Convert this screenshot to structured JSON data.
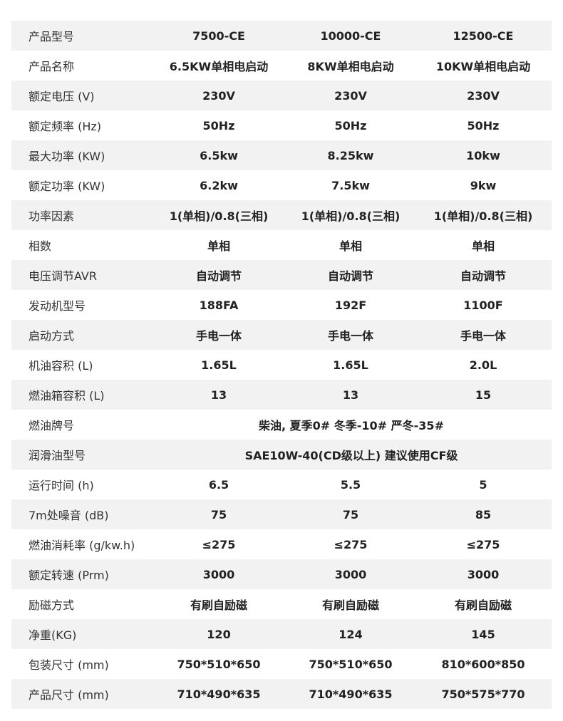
{
  "rows": [
    {
      "label": "产品型号",
      "values": [
        "7500-CE",
        "10000-CE",
        "12500-CE"
      ]
    },
    {
      "label": "产品名称",
      "values": [
        "6.5KW单相电启动",
        "8KW单相电启动",
        "10KW单相电启动"
      ]
    },
    {
      "label": "额定电压 (V)",
      "values": [
        "230V",
        "230V",
        "230V"
      ]
    },
    {
      "label": "额定频率 (Hz)",
      "values": [
        "50Hz",
        "50Hz",
        "50Hz"
      ]
    },
    {
      "label": "最大功率 (KW)",
      "values": [
        "6.5kw",
        "8.25kw",
        "10kw"
      ]
    },
    {
      "label": "额定功率 (KW)",
      "values": [
        "6.2kw",
        "7.5kw",
        "9kw"
      ]
    },
    {
      "label": "功率因素",
      "values": [
        "1(单相)/0.8(三相)",
        "1(单相)/0.8(三相)",
        "1(单相)/0.8(三相)"
      ]
    },
    {
      "label": "相数",
      "values": [
        "单相",
        "单相",
        "单相"
      ]
    },
    {
      "label": "电压调节AVR",
      "values": [
        "自动调节",
        "自动调节",
        "自动调节"
      ]
    },
    {
      "label": "发动机型号",
      "values": [
        "188FA",
        "192F",
        "1100F"
      ]
    },
    {
      "label": "启动方式",
      "values": [
        "手电一体",
        "手电一体",
        "手电一体"
      ]
    },
    {
      "label": "机油容积 (L)",
      "values": [
        "1.65L",
        "1.65L",
        "2.0L"
      ]
    },
    {
      "label": "燃油箱容积 (L)",
      "values": [
        "13",
        "13",
        "15"
      ]
    },
    {
      "label": "燃油牌号",
      "span": "柴油, 夏季0# 冬季-10#  严冬-35#"
    },
    {
      "label": "润滑油型号",
      "span": "SAE10W-40(CD级以上) 建议使用CF级"
    },
    {
      "label": "运行时间 (h)",
      "values": [
        "6.5",
        "5.5",
        "5"
      ]
    },
    {
      "label": "7m处噪音 (dB)",
      "values": [
        "75",
        "75",
        "85"
      ]
    },
    {
      "label": "燃油消耗率 (g/kw.h)",
      "values": [
        "≤275",
        "≤275",
        "≤275"
      ]
    },
    {
      "label": "额定转速 (Prm)",
      "values": [
        "3000",
        "3000",
        "3000"
      ]
    },
    {
      "label": "励磁方式",
      "values": [
        "有刷自励磁",
        "有刷自励磁",
        "有刷自励磁"
      ]
    },
    {
      "label": "净重(KG)",
      "values": [
        "120",
        "124",
        "145"
      ]
    },
    {
      "label": "包装尺寸 (mm)",
      "values": [
        "750*510*650",
        "750*510*650",
        "810*600*850"
      ]
    },
    {
      "label": "产品尺寸 (mm)",
      "values": [
        "710*490*635",
        "710*490*635",
        "750*575*770"
      ]
    }
  ]
}
